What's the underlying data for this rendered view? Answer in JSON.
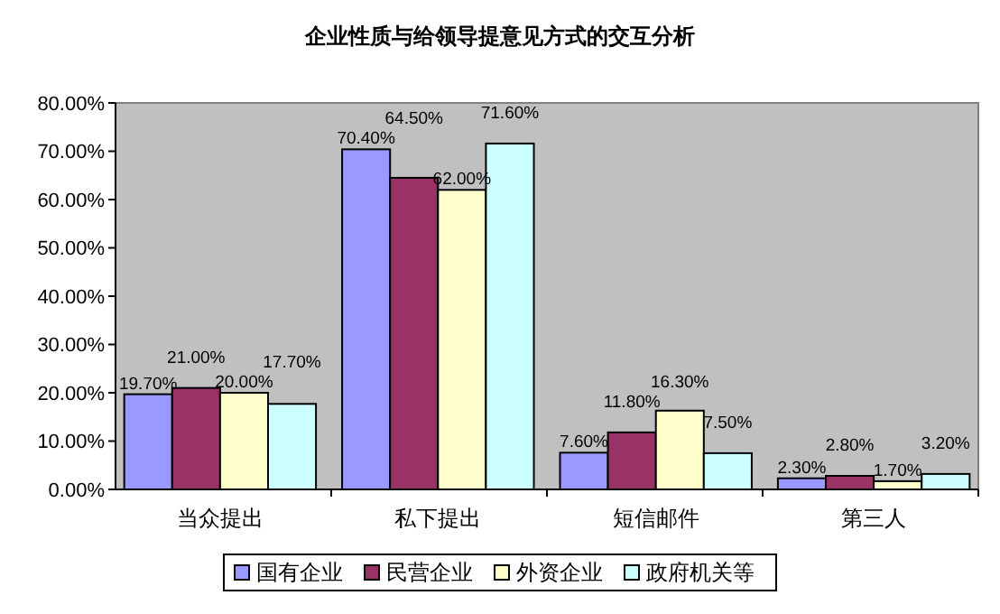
{
  "chart_data": {
    "type": "bar",
    "title": "企业性质与给领导提意见方式的交互分析",
    "categories": [
      "当众提出",
      "私下提出",
      "短信邮件",
      "第三人"
    ],
    "series": [
      {
        "name": "国有企业",
        "color": "#9999ff",
        "values": [
          19.7,
          70.4,
          7.6,
          2.3
        ],
        "value_labels": [
          "19.70%",
          "70.40%",
          "7.60%",
          "2.30%"
        ]
      },
      {
        "name": "民营企业",
        "color": "#993366",
        "values": [
          21.0,
          64.5,
          11.8,
          2.8
        ],
        "value_labels": [
          "21.00%",
          "64.50%",
          "11.80%",
          "2.80%"
        ]
      },
      {
        "name": "外资企业",
        "color": "#ffffcc",
        "values": [
          20.0,
          62.0,
          16.3,
          1.7
        ],
        "value_labels": [
          "20.00%",
          "62.00%",
          "16.30%",
          "1.70%"
        ]
      },
      {
        "name": "政府机关等",
        "color": "#ccffff",
        "values": [
          17.7,
          71.6,
          7.5,
          3.2
        ],
        "value_labels": [
          "17.70%",
          "71.60%",
          "7.50%",
          "3.20%"
        ]
      }
    ],
    "ylim": [
      0,
      80
    ],
    "yticks": [
      {
        "value": 0,
        "label": "0.00%"
      },
      {
        "value": 10,
        "label": "10.00%"
      },
      {
        "value": 20,
        "label": "20.00%"
      },
      {
        "value": 30,
        "label": "30.00%"
      },
      {
        "value": 40,
        "label": "40.00%"
      },
      {
        "value": 50,
        "label": "50.00%"
      },
      {
        "value": 60,
        "label": "60.00%"
      },
      {
        "value": 70,
        "label": "70.00%"
      },
      {
        "value": 80,
        "label": "80.00%"
      }
    ],
    "grid": false,
    "legend": "bottom"
  }
}
